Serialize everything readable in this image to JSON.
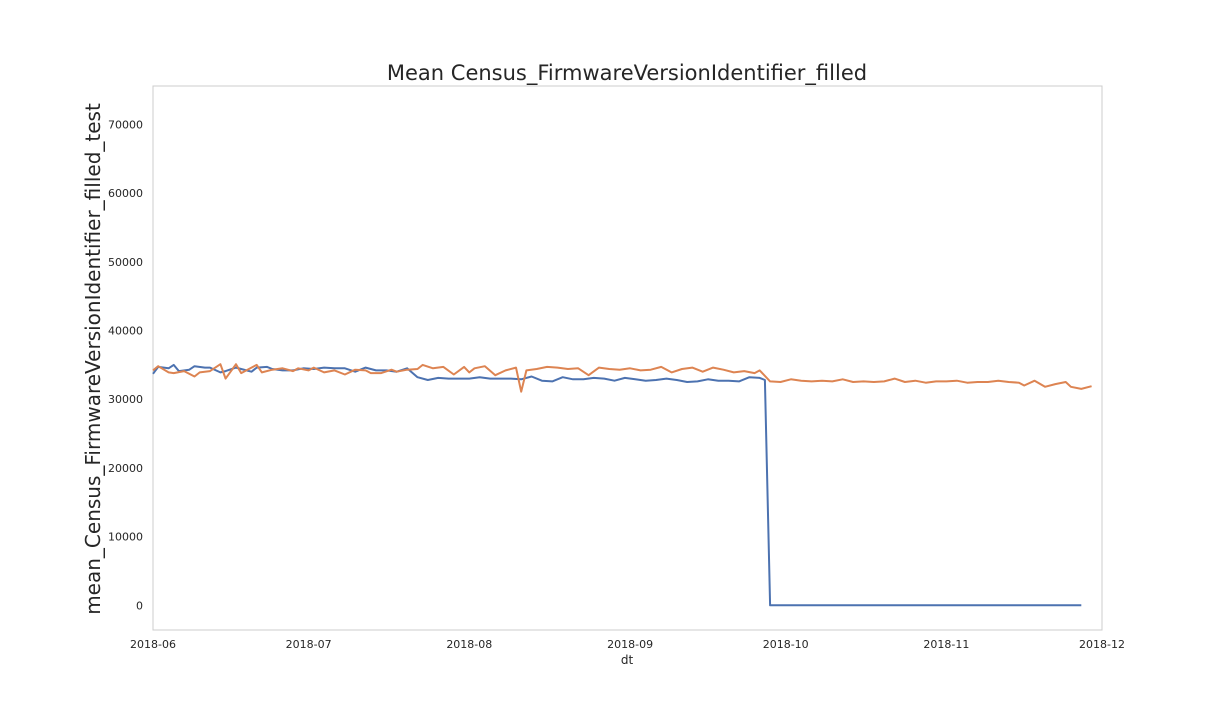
{
  "chart_data": {
    "type": "line",
    "title": "Mean Census_FirmwareVersionIdentifier_filled",
    "xlabel": "dt",
    "ylabel": "mean_Census_FirmwareVersionIdentifier_filled_test",
    "xlim": [
      "2018-06-01",
      "2018-12-01"
    ],
    "ylim": [
      -3600,
      75600
    ],
    "x_ticks": [
      "2018-06",
      "2018-07",
      "2018-08",
      "2018-09",
      "2018-10",
      "2018-11",
      "2018-12"
    ],
    "y_ticks": [
      0,
      10000,
      20000,
      30000,
      40000,
      50000,
      60000,
      70000
    ],
    "grid": false,
    "legend": "none",
    "series_colors": [
      "#4c72b0",
      "#dd8452"
    ],
    "series": [
      {
        "color": "#4c72b0",
        "points": [
          [
            "2018-06-01",
            33700
          ],
          [
            "2018-06-02",
            34700
          ],
          [
            "2018-06-04",
            34500
          ],
          [
            "2018-06-05",
            35000
          ],
          [
            "2018-06-06",
            34100
          ],
          [
            "2018-06-08",
            34300
          ],
          [
            "2018-06-09",
            34800
          ],
          [
            "2018-06-11",
            34600
          ],
          [
            "2018-06-12",
            34600
          ],
          [
            "2018-06-14",
            33900
          ],
          [
            "2018-06-15",
            34100
          ],
          [
            "2018-06-17",
            34600
          ],
          [
            "2018-06-18",
            34400
          ],
          [
            "2018-06-20",
            34000
          ],
          [
            "2018-06-21",
            34600
          ],
          [
            "2018-06-23",
            34700
          ],
          [
            "2018-06-24",
            34400
          ],
          [
            "2018-06-26",
            34200
          ],
          [
            "2018-06-28",
            34200
          ],
          [
            "2018-06-30",
            34500
          ],
          [
            "2018-07-02",
            34400
          ],
          [
            "2018-07-04",
            34600
          ],
          [
            "2018-07-06",
            34500
          ],
          [
            "2018-07-08",
            34500
          ],
          [
            "2018-07-10",
            34000
          ],
          [
            "2018-07-12",
            34600
          ],
          [
            "2018-07-14",
            34200
          ],
          [
            "2018-07-16",
            34200
          ],
          [
            "2018-07-18",
            34000
          ],
          [
            "2018-07-20",
            34500
          ],
          [
            "2018-07-22",
            33200
          ],
          [
            "2018-07-24",
            32800
          ],
          [
            "2018-07-26",
            33100
          ],
          [
            "2018-07-28",
            33000
          ],
          [
            "2018-07-30",
            33000
          ],
          [
            "2018-08-01",
            33000
          ],
          [
            "2018-08-03",
            33200
          ],
          [
            "2018-08-05",
            33000
          ],
          [
            "2018-08-07",
            33000
          ],
          [
            "2018-08-09",
            33000
          ],
          [
            "2018-08-11",
            32900
          ],
          [
            "2018-08-13",
            33300
          ],
          [
            "2018-08-15",
            32700
          ],
          [
            "2018-08-17",
            32600
          ],
          [
            "2018-08-19",
            33200
          ],
          [
            "2018-08-21",
            32900
          ],
          [
            "2018-08-23",
            32900
          ],
          [
            "2018-08-25",
            33100
          ],
          [
            "2018-08-27",
            33000
          ],
          [
            "2018-08-29",
            32700
          ],
          [
            "2018-08-31",
            33100
          ],
          [
            "2018-09-02",
            32900
          ],
          [
            "2018-09-04",
            32700
          ],
          [
            "2018-09-06",
            32800
          ],
          [
            "2018-09-08",
            33000
          ],
          [
            "2018-09-10",
            32800
          ],
          [
            "2018-09-12",
            32500
          ],
          [
            "2018-09-14",
            32600
          ],
          [
            "2018-09-16",
            32900
          ],
          [
            "2018-09-18",
            32700
          ],
          [
            "2018-09-20",
            32700
          ],
          [
            "2018-09-22",
            32600
          ],
          [
            "2018-09-24",
            33200
          ],
          [
            "2018-09-26",
            33100
          ],
          [
            "2018-09-27",
            32800
          ],
          [
            "2018-09-28",
            0
          ],
          [
            "2018-10-10",
            0
          ],
          [
            "2018-10-25",
            0
          ],
          [
            "2018-11-10",
            0
          ],
          [
            "2018-11-27",
            0
          ]
        ]
      },
      {
        "color": "#dd8452",
        "points": [
          [
            "2018-06-01",
            34200
          ],
          [
            "2018-06-02",
            34800
          ],
          [
            "2018-06-04",
            33900
          ],
          [
            "2018-06-05",
            33800
          ],
          [
            "2018-06-07",
            34100
          ],
          [
            "2018-06-09",
            33300
          ],
          [
            "2018-06-10",
            33900
          ],
          [
            "2018-06-12",
            34100
          ],
          [
            "2018-06-14",
            35100
          ],
          [
            "2018-06-15",
            33000
          ],
          [
            "2018-06-17",
            35100
          ],
          [
            "2018-06-18",
            33800
          ],
          [
            "2018-06-20",
            34600
          ],
          [
            "2018-06-21",
            35000
          ],
          [
            "2018-06-22",
            33900
          ],
          [
            "2018-06-24",
            34300
          ],
          [
            "2018-06-26",
            34500
          ],
          [
            "2018-06-28",
            34100
          ],
          [
            "2018-06-29",
            34500
          ],
          [
            "2018-07-01",
            34200
          ],
          [
            "2018-07-02",
            34600
          ],
          [
            "2018-07-04",
            33900
          ],
          [
            "2018-07-06",
            34200
          ],
          [
            "2018-07-08",
            33600
          ],
          [
            "2018-07-10",
            34300
          ],
          [
            "2018-07-12",
            34200
          ],
          [
            "2018-07-13",
            33800
          ],
          [
            "2018-07-15",
            33800
          ],
          [
            "2018-07-17",
            34300
          ],
          [
            "2018-07-18",
            34000
          ],
          [
            "2018-07-20",
            34300
          ],
          [
            "2018-07-22",
            34400
          ],
          [
            "2018-07-23",
            35000
          ],
          [
            "2018-07-25",
            34500
          ],
          [
            "2018-07-27",
            34700
          ],
          [
            "2018-07-29",
            33600
          ],
          [
            "2018-07-31",
            34700
          ],
          [
            "2018-08-01",
            33900
          ],
          [
            "2018-08-02",
            34500
          ],
          [
            "2018-08-04",
            34800
          ],
          [
            "2018-08-06",
            33500
          ],
          [
            "2018-08-08",
            34200
          ],
          [
            "2018-08-10",
            34600
          ],
          [
            "2018-08-11",
            31100
          ],
          [
            "2018-08-12",
            34200
          ],
          [
            "2018-08-14",
            34400
          ],
          [
            "2018-08-16",
            34700
          ],
          [
            "2018-08-18",
            34600
          ],
          [
            "2018-08-20",
            34400
          ],
          [
            "2018-08-22",
            34500
          ],
          [
            "2018-08-24",
            33500
          ],
          [
            "2018-08-26",
            34600
          ],
          [
            "2018-08-28",
            34400
          ],
          [
            "2018-08-30",
            34300
          ],
          [
            "2018-09-01",
            34500
          ],
          [
            "2018-09-03",
            34200
          ],
          [
            "2018-09-05",
            34300
          ],
          [
            "2018-09-07",
            34700
          ],
          [
            "2018-09-09",
            33900
          ],
          [
            "2018-09-11",
            34400
          ],
          [
            "2018-09-13",
            34600
          ],
          [
            "2018-09-15",
            34000
          ],
          [
            "2018-09-17",
            34600
          ],
          [
            "2018-09-19",
            34300
          ],
          [
            "2018-09-21",
            33900
          ],
          [
            "2018-09-23",
            34100
          ],
          [
            "2018-09-25",
            33800
          ],
          [
            "2018-09-26",
            34200
          ],
          [
            "2018-09-28",
            32600
          ],
          [
            "2018-09-30",
            32500
          ],
          [
            "2018-10-02",
            32900
          ],
          [
            "2018-10-04",
            32700
          ],
          [
            "2018-10-06",
            32600
          ],
          [
            "2018-10-08",
            32700
          ],
          [
            "2018-10-10",
            32600
          ],
          [
            "2018-10-12",
            32900
          ],
          [
            "2018-10-14",
            32500
          ],
          [
            "2018-10-16",
            32600
          ],
          [
            "2018-10-18",
            32500
          ],
          [
            "2018-10-20",
            32600
          ],
          [
            "2018-10-22",
            33000
          ],
          [
            "2018-10-24",
            32500
          ],
          [
            "2018-10-26",
            32700
          ],
          [
            "2018-10-28",
            32400
          ],
          [
            "2018-10-30",
            32600
          ],
          [
            "2018-11-01",
            32600
          ],
          [
            "2018-11-03",
            32700
          ],
          [
            "2018-11-05",
            32400
          ],
          [
            "2018-11-07",
            32500
          ],
          [
            "2018-11-09",
            32500
          ],
          [
            "2018-11-11",
            32700
          ],
          [
            "2018-11-13",
            32500
          ],
          [
            "2018-11-15",
            32400
          ],
          [
            "2018-11-16",
            32000
          ],
          [
            "2018-11-18",
            32700
          ],
          [
            "2018-11-20",
            31800
          ],
          [
            "2018-11-22",
            32200
          ],
          [
            "2018-11-24",
            32500
          ],
          [
            "2018-11-25",
            31800
          ],
          [
            "2018-11-27",
            31500
          ],
          [
            "2018-11-29",
            31900
          ]
        ]
      }
    ]
  }
}
